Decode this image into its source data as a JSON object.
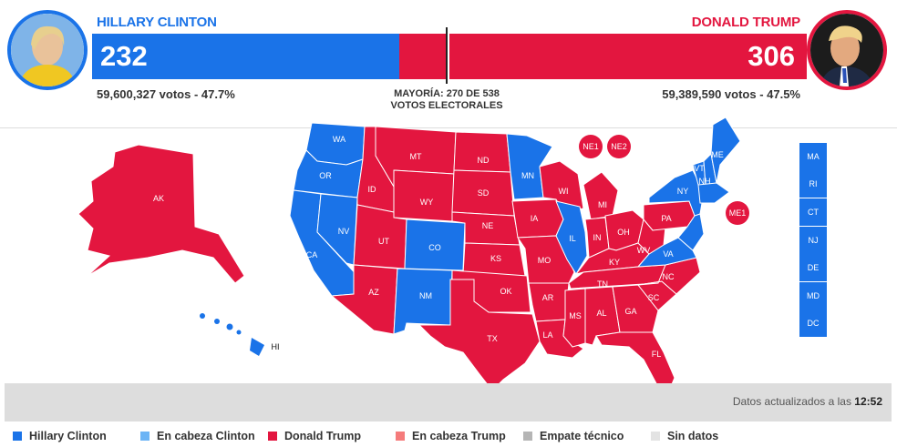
{
  "colors": {
    "clinton": "#1a73e8",
    "trump": "#e3163f",
    "lean_clinton": "#6cb4f5",
    "lean_trump": "#f57b7b",
    "tie": "#b5b5b5",
    "no_data": "#e3e3e3"
  },
  "candidates": {
    "clinton": {
      "name": "HILLARY CLINTON",
      "electoral_votes": "232",
      "popular": "59,600,327 votos - 47.7%",
      "photo_icon": "clinton-portrait"
    },
    "trump": {
      "name": "DONALD TRUMP",
      "electoral_votes": "306",
      "popular": "59,389,590 votos - 47.5%",
      "photo_icon": "trump-portrait"
    }
  },
  "majority": {
    "line1": "MAYORÍA: 270 DE 538",
    "line2": "VOTOS ELECTORALES"
  },
  "map": {
    "states": [
      {
        "abbr": "WA",
        "winner": "clinton"
      },
      {
        "abbr": "OR",
        "winner": "clinton"
      },
      {
        "abbr": "CA",
        "winner": "clinton"
      },
      {
        "abbr": "NV",
        "winner": "clinton"
      },
      {
        "abbr": "ID",
        "winner": "trump"
      },
      {
        "abbr": "MT",
        "winner": "trump"
      },
      {
        "abbr": "WY",
        "winner": "trump"
      },
      {
        "abbr": "UT",
        "winner": "trump"
      },
      {
        "abbr": "AZ",
        "winner": "trump"
      },
      {
        "abbr": "CO",
        "winner": "clinton"
      },
      {
        "abbr": "NM",
        "winner": "clinton"
      },
      {
        "abbr": "ND",
        "winner": "trump"
      },
      {
        "abbr": "SD",
        "winner": "trump"
      },
      {
        "abbr": "NE",
        "winner": "trump"
      },
      {
        "abbr": "KS",
        "winner": "trump"
      },
      {
        "abbr": "OK",
        "winner": "trump"
      },
      {
        "abbr": "TX",
        "winner": "trump"
      },
      {
        "abbr": "MN",
        "winner": "clinton"
      },
      {
        "abbr": "IA",
        "winner": "trump"
      },
      {
        "abbr": "MO",
        "winner": "trump"
      },
      {
        "abbr": "AR",
        "winner": "trump"
      },
      {
        "abbr": "LA",
        "winner": "trump"
      },
      {
        "abbr": "WI",
        "winner": "trump"
      },
      {
        "abbr": "IL",
        "winner": "clinton"
      },
      {
        "abbr": "MI",
        "winner": "trump"
      },
      {
        "abbr": "IN",
        "winner": "trump"
      },
      {
        "abbr": "OH",
        "winner": "trump"
      },
      {
        "abbr": "KY",
        "winner": "trump"
      },
      {
        "abbr": "TN",
        "winner": "trump"
      },
      {
        "abbr": "MS",
        "winner": "trump"
      },
      {
        "abbr": "AL",
        "winner": "trump"
      },
      {
        "abbr": "GA",
        "winner": "trump"
      },
      {
        "abbr": "FL",
        "winner": "trump"
      },
      {
        "abbr": "SC",
        "winner": "trump"
      },
      {
        "abbr": "NC",
        "winner": "trump"
      },
      {
        "abbr": "VA",
        "winner": "clinton"
      },
      {
        "abbr": "WV",
        "winner": "trump"
      },
      {
        "abbr": "PA",
        "winner": "trump"
      },
      {
        "abbr": "NY",
        "winner": "clinton"
      },
      {
        "abbr": "VT",
        "winner": "clinton"
      },
      {
        "abbr": "NH",
        "winner": "clinton"
      },
      {
        "abbr": "ME",
        "winner": "clinton"
      },
      {
        "abbr": "AK",
        "winner": "trump"
      },
      {
        "abbr": "HI",
        "winner": "clinton"
      }
    ],
    "small_states": [
      "MA",
      "RI",
      "CT",
      "NJ",
      "DE",
      "MD",
      "DC"
    ],
    "districts": [
      "NE1",
      "NE2",
      "ME1"
    ]
  },
  "updated": {
    "prefix": "Datos actualizados a las",
    "time": "12:52"
  },
  "legend": [
    {
      "label": "Hillary Clinton",
      "color": "#1a73e8"
    },
    {
      "label": "En cabeza Clinton",
      "color": "#6cb4f5"
    },
    {
      "label": "Donald Trump",
      "color": "#e3163f"
    },
    {
      "label": "En cabeza Trump",
      "color": "#f57b7b"
    },
    {
      "label": "Empate técnico",
      "color": "#b5b5b5"
    },
    {
      "label": "Sin datos",
      "color": "#e3e3e3"
    }
  ]
}
